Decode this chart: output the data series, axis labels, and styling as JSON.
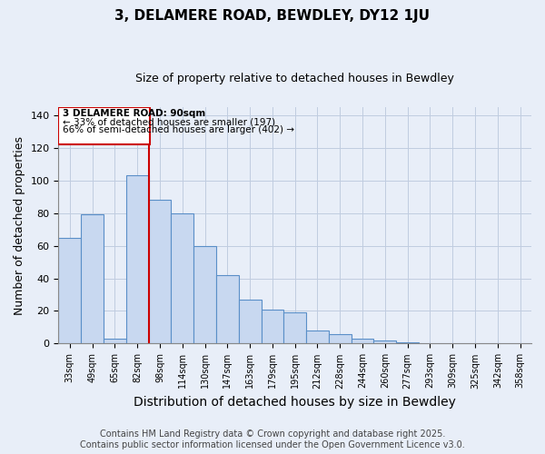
{
  "title": "3, DELAMERE ROAD, BEWDLEY, DY12 1JU",
  "subtitle": "Size of property relative to detached houses in Bewdley",
  "xlabel": "Distribution of detached houses by size in Bewdley",
  "ylabel": "Number of detached properties",
  "categories": [
    "33sqm",
    "49sqm",
    "65sqm",
    "82sqm",
    "98sqm",
    "114sqm",
    "130sqm",
    "147sqm",
    "163sqm",
    "179sqm",
    "195sqm",
    "212sqm",
    "228sqm",
    "244sqm",
    "260sqm",
    "277sqm",
    "293sqm",
    "309sqm",
    "325sqm",
    "342sqm",
    "358sqm"
  ],
  "values": [
    65,
    79,
    3,
    103,
    88,
    80,
    60,
    42,
    27,
    21,
    19,
    8,
    6,
    3,
    2,
    1,
    0,
    0,
    0,
    0,
    0
  ],
  "bar_facecolor": "#c8d8f0",
  "bar_edgecolor": "#5a8fc8",
  "annotation_box_title": "3 DELAMERE ROAD: 90sqm",
  "annotation_line1": "← 33% of detached houses are smaller (197)",
  "annotation_line2": "66% of semi-detached houses are larger (402) →",
  "box_edgecolor": "#cc0000",
  "vline_color": "#cc0000",
  "vline_index": 3.5,
  "ylim": [
    0,
    145
  ],
  "yticks": [
    0,
    20,
    40,
    60,
    80,
    100,
    120,
    140
  ],
  "footer_line1": "Contains HM Land Registry data © Crown copyright and database right 2025.",
  "footer_line2": "Contains public sector information licensed under the Open Government Licence v3.0.",
  "bg_color": "#e8eef8",
  "plot_bg_color": "#e8eef8",
  "grid_color": "#c0cce0",
  "title_fontsize": 11,
  "subtitle_fontsize": 9,
  "axis_label_fontsize": 9,
  "tick_fontsize": 7,
  "footer_fontsize": 7
}
